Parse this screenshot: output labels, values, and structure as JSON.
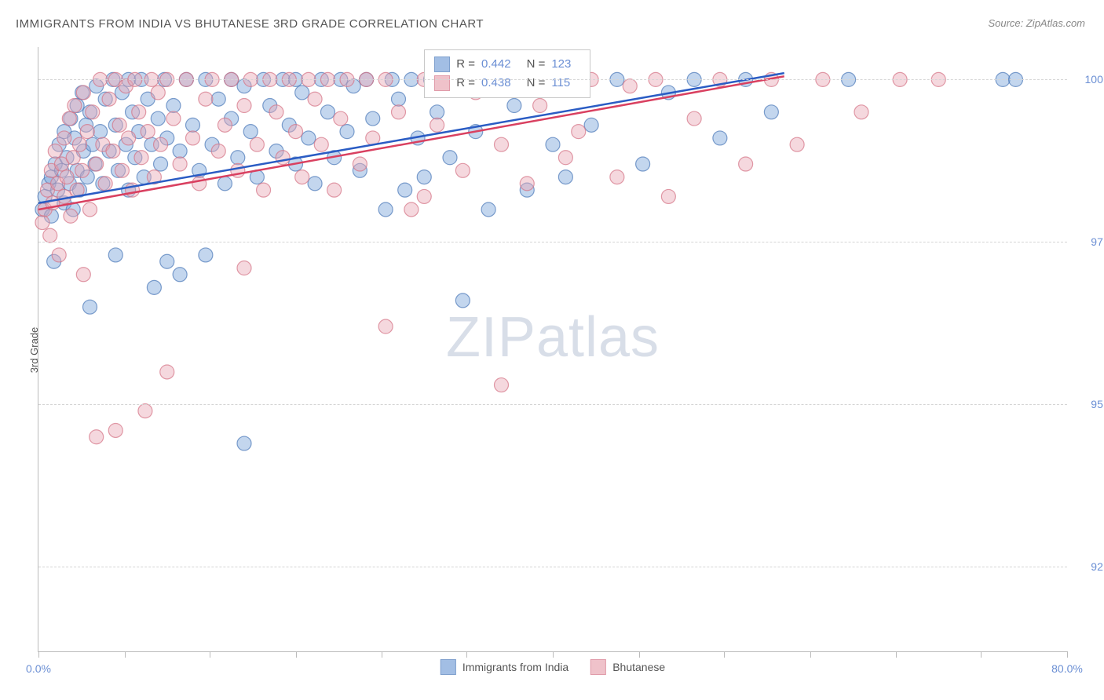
{
  "title": "IMMIGRANTS FROM INDIA VS BHUTANESE 3RD GRADE CORRELATION CHART",
  "source": "Source: ZipAtlas.com",
  "ylabel": "3rd Grade",
  "watermark_a": "ZIP",
  "watermark_b": "atlas",
  "chart": {
    "type": "scatter",
    "xlim": [
      0,
      80
    ],
    "ylim": [
      91.2,
      100.5
    ],
    "xtick_positions": [
      0,
      6.7,
      13.3,
      20,
      26.7,
      33.3,
      40,
      46.7,
      53.3,
      60,
      66.7,
      73.3,
      80
    ],
    "xtick_labels": {
      "0": "0.0%",
      "80": "80.0%"
    },
    "ytick_positions": [
      92.5,
      95.0,
      97.5,
      100.0
    ],
    "ytick_labels": [
      "92.5%",
      "95.0%",
      "97.5%",
      "100.0%"
    ],
    "grid_color": "#d5d5d5",
    "axis_color": "#bbbbbb",
    "background_color": "#ffffff",
    "tick_label_color": "#6b8fd4",
    "marker_radius": 9,
    "marker_opacity": 0.45,
    "marker_stroke_width": 1.2,
    "line_width": 2.5,
    "series": [
      {
        "name": "Immigrants from India",
        "color_fill": "#7ba3d9",
        "color_stroke": "#4a78b8",
        "line_color": "#2a5cc4",
        "R": "0.442",
        "N": "123",
        "trend": {
          "x1": 0,
          "y1": 98.1,
          "x2": 58,
          "y2": 100.1
        },
        "points": [
          [
            0.3,
            98.0
          ],
          [
            0.5,
            98.2
          ],
          [
            0.8,
            98.4
          ],
          [
            1.0,
            97.9
          ],
          [
            1.0,
            98.5
          ],
          [
            1.2,
            97.2
          ],
          [
            1.3,
            98.7
          ],
          [
            1.5,
            98.3
          ],
          [
            1.6,
            99.0
          ],
          [
            1.8,
            98.6
          ],
          [
            2.0,
            98.1
          ],
          [
            2.0,
            99.2
          ],
          [
            2.2,
            98.8
          ],
          [
            2.4,
            98.4
          ],
          [
            2.5,
            99.4
          ],
          [
            2.7,
            98.0
          ],
          [
            2.8,
            99.1
          ],
          [
            3.0,
            98.6
          ],
          [
            3.0,
            99.6
          ],
          [
            3.2,
            98.3
          ],
          [
            3.4,
            99.8
          ],
          [
            3.5,
            98.9
          ],
          [
            3.7,
            99.3
          ],
          [
            3.8,
            98.5
          ],
          [
            4.0,
            99.5
          ],
          [
            4.0,
            96.5
          ],
          [
            4.2,
            99.0
          ],
          [
            4.4,
            98.7
          ],
          [
            4.5,
            99.9
          ],
          [
            4.8,
            99.2
          ],
          [
            5.0,
            98.4
          ],
          [
            5.2,
            99.7
          ],
          [
            5.5,
            98.9
          ],
          [
            5.8,
            100.0
          ],
          [
            6.0,
            99.3
          ],
          [
            6.0,
            97.3
          ],
          [
            6.2,
            98.6
          ],
          [
            6.5,
            99.8
          ],
          [
            6.8,
            99.0
          ],
          [
            7.0,
            98.3
          ],
          [
            7.0,
            100.0
          ],
          [
            7.3,
            99.5
          ],
          [
            7.5,
            98.8
          ],
          [
            7.8,
            99.2
          ],
          [
            8.0,
            100.0
          ],
          [
            8.2,
            98.5
          ],
          [
            8.5,
            99.7
          ],
          [
            8.8,
            99.0
          ],
          [
            9.0,
            96.8
          ],
          [
            9.3,
            99.4
          ],
          [
            9.5,
            98.7
          ],
          [
            9.8,
            100.0
          ],
          [
            10.0,
            99.1
          ],
          [
            10.0,
            97.2
          ],
          [
            10.5,
            99.6
          ],
          [
            11.0,
            98.9
          ],
          [
            11.0,
            97.0
          ],
          [
            11.5,
            100.0
          ],
          [
            12.0,
            99.3
          ],
          [
            12.5,
            98.6
          ],
          [
            13.0,
            100.0
          ],
          [
            13.0,
            97.3
          ],
          [
            13.5,
            99.0
          ],
          [
            14.0,
            99.7
          ],
          [
            14.5,
            98.4
          ],
          [
            15.0,
            99.4
          ],
          [
            15.0,
            100.0
          ],
          [
            15.5,
            98.8
          ],
          [
            16.0,
            99.9
          ],
          [
            16.0,
            94.4
          ],
          [
            16.5,
            99.2
          ],
          [
            17.0,
            98.5
          ],
          [
            17.5,
            100.0
          ],
          [
            18.0,
            99.6
          ],
          [
            18.5,
            98.9
          ],
          [
            19.0,
            100.0
          ],
          [
            19.5,
            99.3
          ],
          [
            20.0,
            98.7
          ],
          [
            20.0,
            100.0
          ],
          [
            20.5,
            99.8
          ],
          [
            21.0,
            99.1
          ],
          [
            21.5,
            98.4
          ],
          [
            22.0,
            100.0
          ],
          [
            22.5,
            99.5
          ],
          [
            23.0,
            98.8
          ],
          [
            23.5,
            100.0
          ],
          [
            24.0,
            99.2
          ],
          [
            24.5,
            99.9
          ],
          [
            25.0,
            98.6
          ],
          [
            25.5,
            100.0
          ],
          [
            26.0,
            99.4
          ],
          [
            27.0,
            98.0
          ],
          [
            27.5,
            100.0
          ],
          [
            28.0,
            99.7
          ],
          [
            28.5,
            98.3
          ],
          [
            29.0,
            100.0
          ],
          [
            29.5,
            99.1
          ],
          [
            30.0,
            98.5
          ],
          [
            30.5,
            100.0
          ],
          [
            31.0,
            99.5
          ],
          [
            32.0,
            98.8
          ],
          [
            33.0,
            100.0
          ],
          [
            33.0,
            96.6
          ],
          [
            34.0,
            99.2
          ],
          [
            35.0,
            98.0
          ],
          [
            36.0,
            100.0
          ],
          [
            37.0,
            99.6
          ],
          [
            38.0,
            98.3
          ],
          [
            39.0,
            100.0
          ],
          [
            40.0,
            99.0
          ],
          [
            41.0,
            98.5
          ],
          [
            42.0,
            100.0
          ],
          [
            43.0,
            99.3
          ],
          [
            45.0,
            100.0
          ],
          [
            47.0,
            98.7
          ],
          [
            49.0,
            99.8
          ],
          [
            51.0,
            100.0
          ],
          [
            53.0,
            99.1
          ],
          [
            55.0,
            100.0
          ],
          [
            57.0,
            99.5
          ],
          [
            63.0,
            100.0
          ],
          [
            75.0,
            100.0
          ],
          [
            76.0,
            100.0
          ]
        ]
      },
      {
        "name": "Bhutanese",
        "color_fill": "#e9a9b5",
        "color_stroke": "#d47285",
        "line_color": "#d94060",
        "R": "0.438",
        "N": "115",
        "trend": {
          "x1": 0,
          "y1": 98.0,
          "x2": 58,
          "y2": 100.05
        },
        "points": [
          [
            0.3,
            97.8
          ],
          [
            0.5,
            98.0
          ],
          [
            0.7,
            98.3
          ],
          [
            0.9,
            97.6
          ],
          [
            1.0,
            98.6
          ],
          [
            1.1,
            98.1
          ],
          [
            1.3,
            98.9
          ],
          [
            1.5,
            98.4
          ],
          [
            1.6,
            97.3
          ],
          [
            1.8,
            98.7
          ],
          [
            2.0,
            98.2
          ],
          [
            2.0,
            99.1
          ],
          [
            2.2,
            98.5
          ],
          [
            2.4,
            99.4
          ],
          [
            2.5,
            97.9
          ],
          [
            2.7,
            98.8
          ],
          [
            2.8,
            99.6
          ],
          [
            3.0,
            98.3
          ],
          [
            3.2,
            99.0
          ],
          [
            3.4,
            98.6
          ],
          [
            3.5,
            99.8
          ],
          [
            3.5,
            97.0
          ],
          [
            3.8,
            99.2
          ],
          [
            4.0,
            98.0
          ],
          [
            4.2,
            99.5
          ],
          [
            4.5,
            98.7
          ],
          [
            4.5,
            94.5
          ],
          [
            4.8,
            100.0
          ],
          [
            5.0,
            99.0
          ],
          [
            5.2,
            98.4
          ],
          [
            5.5,
            99.7
          ],
          [
            5.8,
            98.9
          ],
          [
            6.0,
            100.0
          ],
          [
            6.0,
            94.6
          ],
          [
            6.3,
            99.3
          ],
          [
            6.5,
            98.6
          ],
          [
            6.8,
            99.9
          ],
          [
            7.0,
            99.1
          ],
          [
            7.3,
            98.3
          ],
          [
            7.5,
            100.0
          ],
          [
            7.8,
            99.5
          ],
          [
            8.0,
            98.8
          ],
          [
            8.3,
            94.9
          ],
          [
            8.5,
            99.2
          ],
          [
            8.8,
            100.0
          ],
          [
            9.0,
            98.5
          ],
          [
            9.3,
            99.8
          ],
          [
            9.5,
            99.0
          ],
          [
            10.0,
            95.5
          ],
          [
            10.0,
            100.0
          ],
          [
            10.5,
            99.4
          ],
          [
            11.0,
            98.7
          ],
          [
            11.5,
            100.0
          ],
          [
            12.0,
            99.1
          ],
          [
            12.5,
            98.4
          ],
          [
            13.0,
            99.7
          ],
          [
            13.5,
            100.0
          ],
          [
            14.0,
            98.9
          ],
          [
            14.5,
            99.3
          ],
          [
            15.0,
            100.0
          ],
          [
            15.5,
            98.6
          ],
          [
            16.0,
            99.6
          ],
          [
            16.0,
            97.1
          ],
          [
            16.5,
            100.0
          ],
          [
            17.0,
            99.0
          ],
          [
            17.5,
            98.3
          ],
          [
            18.0,
            100.0
          ],
          [
            18.5,
            99.5
          ],
          [
            19.0,
            98.8
          ],
          [
            19.5,
            100.0
          ],
          [
            20.0,
            99.2
          ],
          [
            20.5,
            98.5
          ],
          [
            21.0,
            100.0
          ],
          [
            21.5,
            99.7
          ],
          [
            22.0,
            99.0
          ],
          [
            22.5,
            100.0
          ],
          [
            23.0,
            98.3
          ],
          [
            23.5,
            99.4
          ],
          [
            24.0,
            100.0
          ],
          [
            25.0,
            98.7
          ],
          [
            25.5,
            100.0
          ],
          [
            26.0,
            99.1
          ],
          [
            27.0,
            96.2
          ],
          [
            27.0,
            100.0
          ],
          [
            28.0,
            99.5
          ],
          [
            29.0,
            98.0
          ],
          [
            30.0,
            100.0
          ],
          [
            30.0,
            98.2
          ],
          [
            31.0,
            99.3
          ],
          [
            32.0,
            100.0
          ],
          [
            33.0,
            98.6
          ],
          [
            34.0,
            99.8
          ],
          [
            35.0,
            100.0
          ],
          [
            36.0,
            95.3
          ],
          [
            36.0,
            99.0
          ],
          [
            37.0,
            100.0
          ],
          [
            38.0,
            98.4
          ],
          [
            39.0,
            99.6
          ],
          [
            40.0,
            100.0
          ],
          [
            41.0,
            98.8
          ],
          [
            42.0,
            99.2
          ],
          [
            43.0,
            100.0
          ],
          [
            45.0,
            98.5
          ],
          [
            46.0,
            99.9
          ],
          [
            48.0,
            100.0
          ],
          [
            49.0,
            98.2
          ],
          [
            51.0,
            99.4
          ],
          [
            53.0,
            100.0
          ],
          [
            55.0,
            98.7
          ],
          [
            57.0,
            100.0
          ],
          [
            59.0,
            99.0
          ],
          [
            61.0,
            100.0
          ],
          [
            64.0,
            99.5
          ],
          [
            67.0,
            100.0
          ],
          [
            70.0,
            100.0
          ]
        ]
      }
    ]
  },
  "legend_top": {
    "R_label": "R =",
    "N_label": "N ="
  }
}
